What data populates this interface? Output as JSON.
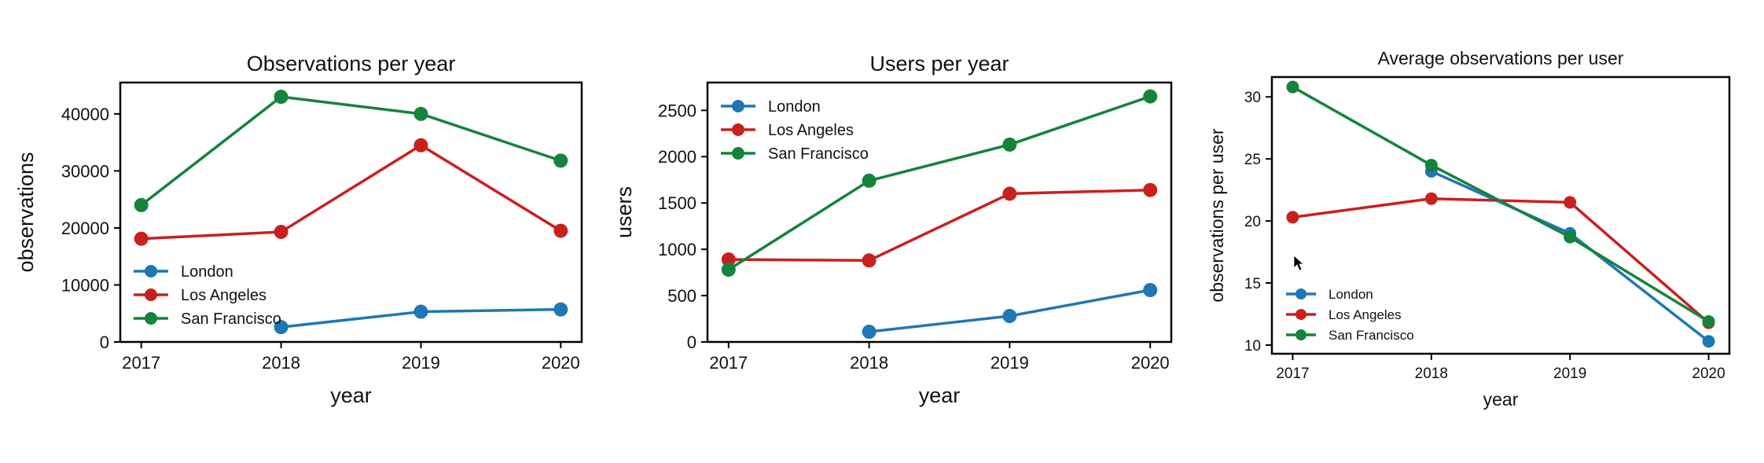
{
  "colors": {
    "London": "#1f77b4",
    "Los Angeles": "#c9201f",
    "San Francisco": "#14833b",
    "axis": "#000000"
  },
  "chart_data": [
    {
      "type": "line",
      "title": "Observations per year",
      "xlabel": "year",
      "ylabel": "observations",
      "x": [
        2017,
        2018,
        2019,
        2020
      ],
      "xticks": [
        "2017",
        "2018",
        "2019",
        "2020"
      ],
      "xlim": [
        2016.85,
        2020.15
      ],
      "ylim": [
        0,
        45500
      ],
      "yticks": [
        0,
        10000,
        20000,
        30000,
        40000
      ],
      "yticklabels": [
        "0",
        "10000",
        "20000",
        "30000",
        "40000"
      ],
      "legend": "lower-left",
      "series": [
        {
          "name": "London",
          "values": [
            null,
            2600,
            5300,
            5700
          ]
        },
        {
          "name": "Los Angeles",
          "values": [
            18100,
            19300,
            34500,
            19500
          ]
        },
        {
          "name": "San Francisco",
          "values": [
            24000,
            43000,
            40000,
            31800
          ]
        }
      ]
    },
    {
      "type": "line",
      "title": "Users per year",
      "xlabel": "year",
      "ylabel": "users",
      "x": [
        2017,
        2018,
        2019,
        2020
      ],
      "xticks": [
        "2017",
        "2018",
        "2019",
        "2020"
      ],
      "xlim": [
        2016.85,
        2020.15
      ],
      "ylim": [
        0,
        2800
      ],
      "yticks": [
        0,
        500,
        1000,
        1500,
        2000,
        2500
      ],
      "yticklabels": [
        "0",
        "500",
        "1000",
        "1500",
        "2000",
        "2500"
      ],
      "legend": "upper-left",
      "series": [
        {
          "name": "London",
          "values": [
            null,
            110,
            280,
            560
          ]
        },
        {
          "name": "Los Angeles",
          "values": [
            890,
            880,
            1600,
            1640
          ]
        },
        {
          "name": "San Francisco",
          "values": [
            780,
            1740,
            2130,
            2650
          ]
        }
      ]
    },
    {
      "type": "line",
      "title": "Average observations per user",
      "xlabel": "year",
      "ylabel": "observations per user",
      "x": [
        2017,
        2018,
        2019,
        2020
      ],
      "xticks": [
        "2017",
        "2018",
        "2019",
        "2020"
      ],
      "xlim": [
        2016.85,
        2020.15
      ],
      "ylim": [
        9.3,
        31.6
      ],
      "yticks": [
        10,
        15,
        20,
        25,
        30
      ],
      "yticklabels": [
        "10",
        "15",
        "20",
        "25",
        "30"
      ],
      "legend": "lower-left",
      "series": [
        {
          "name": "London",
          "values": [
            null,
            24.0,
            19.0,
            10.3
          ]
        },
        {
          "name": "Los Angeles",
          "values": [
            20.3,
            21.8,
            21.5,
            11.8
          ]
        },
        {
          "name": "San Francisco",
          "values": [
            30.8,
            24.5,
            18.7,
            11.9
          ]
        }
      ]
    }
  ]
}
